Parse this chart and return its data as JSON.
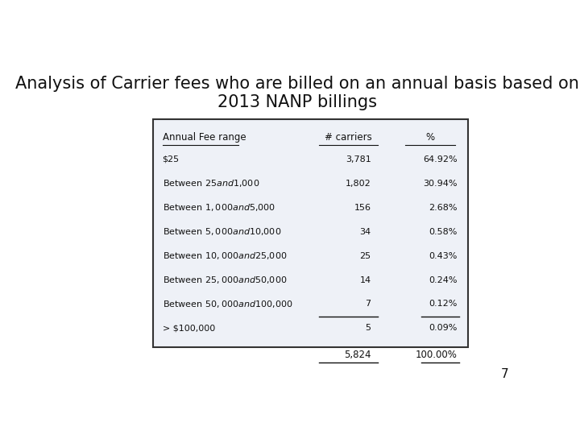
{
  "title_line1": "Analysis of Carrier fees who are billed on an annual basis based on",
  "title_line2": "2013 NANP billings",
  "title_fontsize": 15,
  "col_headers": [
    "Annual Fee range",
    "# carriers",
    "%"
  ],
  "rows": [
    [
      "$25",
      "3,781",
      "64.92%"
    ],
    [
      "Between $25 and $1,000",
      "1,802",
      "30.94%"
    ],
    [
      "Between $1,000 and $5,000",
      "156",
      "2.68%"
    ],
    [
      "Between $5,000 and $10,000",
      "34",
      "0.58%"
    ],
    [
      "Between $10,000 and $25,000",
      "25",
      "0.43%"
    ],
    [
      "Between $25,000 and $50,000",
      "14",
      "0.24%"
    ],
    [
      "Between $50,000 and $100,000",
      "7",
      "0.12%"
    ],
    [
      "> $100,000",
      "5",
      "0.09%"
    ]
  ],
  "total_row": [
    "",
    "5,824",
    "100.00%"
  ],
  "table_bg": "#eef1f7",
  "table_border": "#333333",
  "page_number": "7",
  "bg_color": "#ffffff"
}
